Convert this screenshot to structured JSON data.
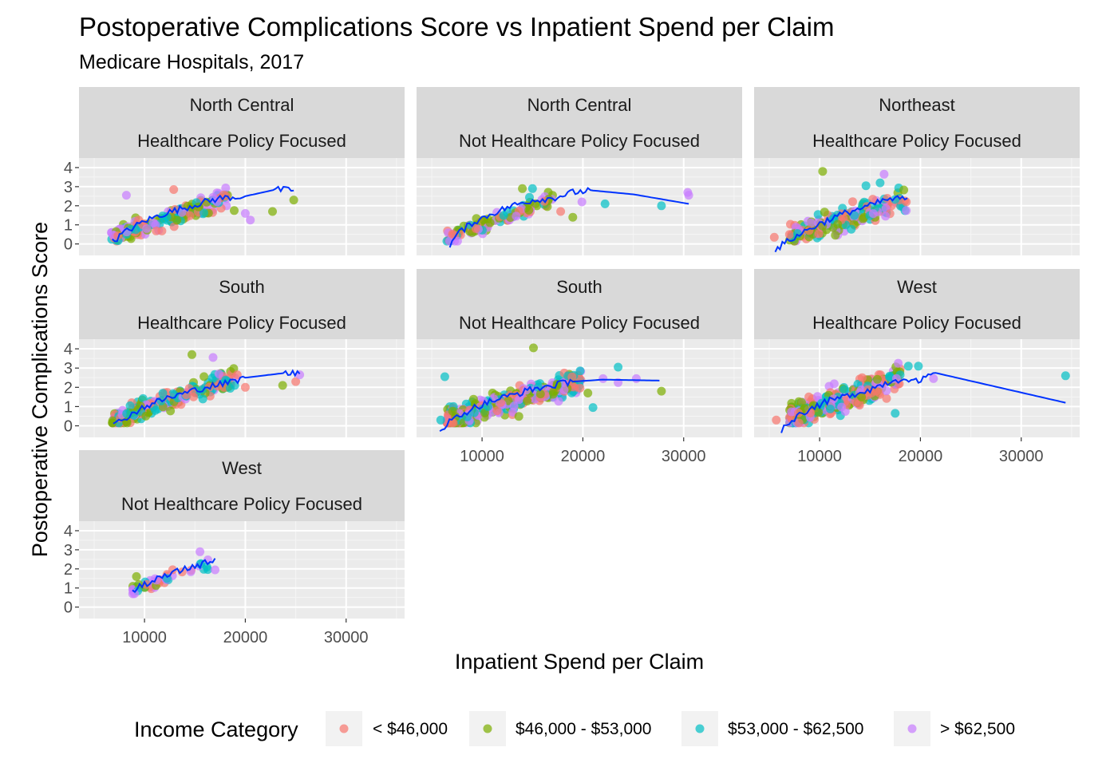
{
  "chart_data": {
    "type": "scatter",
    "title": "Postoperative Complications Score vs Inpatient Spend per Claim",
    "subtitle": "Medicare Hospitals, 2017",
    "xlabel": "Inpatient Spend per Claim",
    "ylabel": "Postoperative Complications Score",
    "xlim": [
      3500,
      35800
    ],
    "ylim": [
      -0.6,
      4.5
    ],
    "x_ticks": [
      10000,
      20000,
      30000
    ],
    "x_tick_labels": [
      "10000",
      "20000",
      "30000"
    ],
    "y_ticks": [
      0,
      1,
      2,
      3,
      4
    ],
    "y_tick_labels": [
      "0",
      "1",
      "2",
      "3",
      "4"
    ],
    "grid": true,
    "legend": {
      "title": "Income Category",
      "position": "bottom",
      "entries": [
        {
          "label": "< $46,000",
          "color": "#F8766D"
        },
        {
          "label": "$46,000 - $53,000",
          "color": "#7CAE00"
        },
        {
          "label": "$53,000 - $62,500",
          "color": "#00BFC4"
        },
        {
          "label": "> $62,500",
          "color": "#C77CFF"
        }
      ]
    },
    "trend_color": "#0033FF",
    "facets": [
      {
        "strip": [
          "North Central",
          "Healthcare Policy Focused"
        ],
        "cloud": {
          "xmin": 6700,
          "xmax": 18500,
          "y0": 0.3,
          "y1": 2.5,
          "spread": 0.45,
          "n": 170
        },
        "extra_points": [
          {
            "x": 8200,
            "y": 2.55,
            "c": 3
          },
          {
            "x": 12900,
            "y": 2.85,
            "c": 0
          },
          {
            "x": 18100,
            "y": 2.5,
            "c": 0
          },
          {
            "x": 18900,
            "y": 1.75,
            "c": 1
          },
          {
            "x": 20000,
            "y": 1.6,
            "c": 3
          },
          {
            "x": 20500,
            "y": 1.25,
            "c": 3
          },
          {
            "x": 22700,
            "y": 1.7,
            "c": 1
          },
          {
            "x": 24800,
            "y": 2.3,
            "c": 1
          }
        ],
        "trend": [
          [
            6800,
            0.1
          ],
          [
            8000,
            0.6
          ],
          [
            10000,
            1.2
          ],
          [
            12000,
            1.6
          ],
          [
            14000,
            1.9
          ],
          [
            16000,
            2.2
          ],
          [
            17500,
            2.4
          ],
          [
            20000,
            2.5
          ],
          [
            23000,
            2.85
          ],
          [
            24800,
            2.8
          ]
        ]
      },
      {
        "strip": [
          "North Central",
          "Not Healthcare Policy Focused"
        ],
        "cloud": {
          "xmin": 6500,
          "xmax": 17000,
          "y0": 0.3,
          "y1": 2.35,
          "spread": 0.4,
          "n": 110
        },
        "extra_points": [
          {
            "x": 14000,
            "y": 2.9,
            "c": 1
          },
          {
            "x": 15000,
            "y": 2.9,
            "c": 2
          },
          {
            "x": 17800,
            "y": 1.7,
            "c": 0
          },
          {
            "x": 19000,
            "y": 1.4,
            "c": 1
          },
          {
            "x": 19900,
            "y": 2.2,
            "c": 3
          },
          {
            "x": 22200,
            "y": 2.1,
            "c": 2
          },
          {
            "x": 27800,
            "y": 2.0,
            "c": 2
          },
          {
            "x": 30400,
            "y": 2.7,
            "c": 3
          },
          {
            "x": 30500,
            "y": 2.55,
            "c": 3
          }
        ],
        "trend": [
          [
            6800,
            -0.1
          ],
          [
            7500,
            0.5
          ],
          [
            9000,
            1.1
          ],
          [
            11000,
            1.6
          ],
          [
            13000,
            2.0
          ],
          [
            15000,
            2.3
          ],
          [
            17000,
            2.4
          ],
          [
            19000,
            2.7
          ],
          [
            21000,
            2.8
          ],
          [
            25000,
            2.6
          ],
          [
            30500,
            2.1
          ]
        ]
      },
      {
        "strip": [
          "Northeast",
          "Healthcare Policy Focused"
        ],
        "cloud": {
          "xmin": 7000,
          "xmax": 18500,
          "y0": 0.3,
          "y1": 2.3,
          "spread": 0.55,
          "n": 190
        },
        "extra_points": [
          {
            "x": 5500,
            "y": 0.35,
            "c": 0
          },
          {
            "x": 10300,
            "y": 3.8,
            "c": 1
          },
          {
            "x": 14600,
            "y": 3.05,
            "c": 2
          },
          {
            "x": 16000,
            "y": 3.2,
            "c": 2
          },
          {
            "x": 16400,
            "y": 3.65,
            "c": 3
          },
          {
            "x": 18600,
            "y": 2.2,
            "c": 0
          },
          {
            "x": 18600,
            "y": 1.75,
            "c": 3
          }
        ],
        "trend": [
          [
            5600,
            -0.3
          ],
          [
            7000,
            0.2
          ],
          [
            9000,
            0.8
          ],
          [
            11000,
            1.3
          ],
          [
            13000,
            1.7
          ],
          [
            15000,
            2.0
          ],
          [
            16500,
            2.3
          ],
          [
            18700,
            2.4
          ]
        ]
      },
      {
        "strip": [
          "South",
          "Healthcare Policy Focused"
        ],
        "cloud": {
          "xmin": 6800,
          "xmax": 19000,
          "y0": 0.3,
          "y1": 2.5,
          "spread": 0.45,
          "n": 220
        },
        "extra_points": [
          {
            "x": 14700,
            "y": 3.7,
            "c": 1
          },
          {
            "x": 16800,
            "y": 3.55,
            "c": 3
          },
          {
            "x": 17900,
            "y": 2.0,
            "c": 0
          },
          {
            "x": 18500,
            "y": 1.95,
            "c": 2
          },
          {
            "x": 19200,
            "y": 2.65,
            "c": 0
          },
          {
            "x": 20000,
            "y": 2.0,
            "c": 0
          },
          {
            "x": 23700,
            "y": 2.1,
            "c": 1
          },
          {
            "x": 25000,
            "y": 2.3,
            "c": 0
          },
          {
            "x": 25400,
            "y": 2.65,
            "c": 3
          }
        ],
        "trend": [
          [
            6900,
            0.0
          ],
          [
            8000,
            0.4
          ],
          [
            10000,
            1.0
          ],
          [
            12000,
            1.4
          ],
          [
            14000,
            1.7
          ],
          [
            16000,
            2.0
          ],
          [
            18000,
            2.2
          ],
          [
            20000,
            2.5
          ],
          [
            24000,
            2.75
          ],
          [
            25400,
            2.7
          ]
        ]
      },
      {
        "strip": [
          "South",
          "Not Healthcare Policy Focused"
        ],
        "cloud": {
          "xmin": 6500,
          "xmax": 20000,
          "y0": 0.3,
          "y1": 2.4,
          "spread": 0.55,
          "n": 380
        },
        "extra_points": [
          {
            "x": 5900,
            "y": 0.3,
            "c": 2
          },
          {
            "x": 6300,
            "y": 2.55,
            "c": 2
          },
          {
            "x": 15100,
            "y": 4.05,
            "c": 1
          },
          {
            "x": 20500,
            "y": 1.7,
            "c": 1
          },
          {
            "x": 21000,
            "y": 0.95,
            "c": 2
          },
          {
            "x": 22000,
            "y": 2.45,
            "c": 3
          },
          {
            "x": 23500,
            "y": 2.25,
            "c": 3
          },
          {
            "x": 23500,
            "y": 3.05,
            "c": 2
          },
          {
            "x": 25300,
            "y": 2.45,
            "c": 3
          },
          {
            "x": 27800,
            "y": 1.8,
            "c": 1
          }
        ],
        "trend": [
          [
            5800,
            -0.2
          ],
          [
            7000,
            0.3
          ],
          [
            9000,
            0.9
          ],
          [
            11000,
            1.3
          ],
          [
            13000,
            1.6
          ],
          [
            15000,
            1.9
          ],
          [
            17000,
            2.1
          ],
          [
            19000,
            2.3
          ],
          [
            22000,
            2.4
          ],
          [
            27600,
            2.35
          ]
        ]
      },
      {
        "strip": [
          "West",
          "Healthcare Policy Focused"
        ],
        "cloud": {
          "xmin": 7000,
          "xmax": 18000,
          "y0": 0.4,
          "y1": 2.5,
          "spread": 0.6,
          "n": 300
        },
        "extra_points": [
          {
            "x": 5700,
            "y": 0.3,
            "c": 0
          },
          {
            "x": 17500,
            "y": 0.65,
            "c": 2
          },
          {
            "x": 17800,
            "y": 3.25,
            "c": 3
          },
          {
            "x": 18800,
            "y": 3.1,
            "c": 2
          },
          {
            "x": 19800,
            "y": 3.1,
            "c": 2
          },
          {
            "x": 21300,
            "y": 2.45,
            "c": 3
          },
          {
            "x": 34400,
            "y": 2.6,
            "c": 2
          }
        ],
        "trend": [
          [
            6200,
            -0.2
          ],
          [
            7500,
            0.4
          ],
          [
            9000,
            0.9
          ],
          [
            11000,
            1.3
          ],
          [
            13000,
            1.6
          ],
          [
            15000,
            1.9
          ],
          [
            17000,
            2.3
          ],
          [
            18600,
            2.5
          ],
          [
            19800,
            2.25
          ],
          [
            21500,
            2.75
          ],
          [
            34400,
            1.2
          ]
        ]
      },
      {
        "strip": [
          "West",
          "Not Healthcare Policy Focused"
        ],
        "cloud": {
          "xmin": 8800,
          "xmax": 16500,
          "y0": 0.9,
          "y1": 2.3,
          "spread": 0.3,
          "n": 45
        },
        "extra_points": [
          {
            "x": 9000,
            "y": 0.7,
            "c": 3
          },
          {
            "x": 15500,
            "y": 2.9,
            "c": 3
          },
          {
            "x": 17000,
            "y": 1.95,
            "c": 3
          },
          {
            "x": 9200,
            "y": 1.6,
            "c": 1
          }
        ],
        "trend": [
          [
            8800,
            0.8
          ],
          [
            10000,
            1.2
          ],
          [
            12000,
            1.6
          ],
          [
            14000,
            2.0
          ],
          [
            16000,
            2.3
          ],
          [
            17000,
            2.55
          ]
        ]
      }
    ]
  }
}
